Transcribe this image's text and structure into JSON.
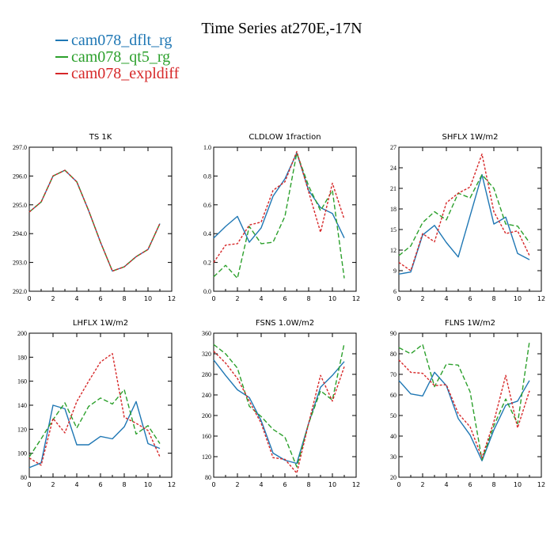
{
  "title": "Time Series at270E,-17N",
  "legend": [
    {
      "name": "cam078_dflt_rg",
      "color": "#1f77b4"
    },
    {
      "name": "cam078_qt5_rg",
      "color": "#2ca02c"
    },
    {
      "name": "cam078_expldiff",
      "color": "#d62728"
    }
  ],
  "chart_data": [
    {
      "type": "line",
      "title": "TS   1K",
      "x": [
        0,
        1,
        2,
        3,
        4,
        5,
        6,
        7,
        8,
        9,
        10,
        11
      ],
      "xlim": [
        0,
        12
      ],
      "xticks": [
        0,
        2,
        4,
        6,
        8,
        10,
        12
      ],
      "ylim": [
        292.0,
        297.0
      ],
      "yticks": [
        "292.0",
        "293.0",
        "294.0",
        "295.0",
        "296.0",
        "297.0"
      ],
      "series": [
        {
          "values": [
            294.75,
            295.1,
            296.0,
            296.2,
            295.8,
            294.8,
            293.7,
            292.7,
            292.85,
            293.2,
            293.45,
            294.35
          ]
        },
        {
          "values": [
            294.75,
            295.1,
            296.0,
            296.2,
            295.8,
            294.8,
            293.7,
            292.7,
            292.85,
            293.2,
            293.45,
            294.35
          ]
        },
        {
          "values": [
            294.75,
            295.1,
            296.0,
            296.2,
            295.8,
            294.8,
            293.7,
            292.7,
            292.85,
            293.2,
            293.45,
            294.35
          ]
        }
      ]
    },
    {
      "type": "line",
      "title": "CLDLOW   1fraction",
      "x": [
        0,
        1,
        2,
        3,
        4,
        5,
        6,
        7,
        8,
        9,
        10,
        11
      ],
      "xlim": [
        0,
        12
      ],
      "xticks": [
        0,
        2,
        4,
        6,
        8,
        10,
        12
      ],
      "ylim": [
        0.0,
        1.0
      ],
      "yticks": [
        "0.0",
        "0.2",
        "0.4",
        "0.6",
        "0.8",
        "1.0"
      ],
      "series": [
        {
          "values": [
            0.37,
            0.45,
            0.52,
            0.34,
            0.44,
            0.66,
            0.78,
            0.96,
            0.7,
            0.58,
            0.54,
            0.37
          ]
        },
        {
          "values": [
            0.1,
            0.18,
            0.09,
            0.45,
            0.33,
            0.34,
            0.52,
            0.96,
            0.73,
            0.56,
            0.7,
            0.09
          ]
        },
        {
          "values": [
            0.2,
            0.32,
            0.33,
            0.46,
            0.48,
            0.7,
            0.76,
            0.97,
            0.69,
            0.41,
            0.75,
            0.5
          ]
        }
      ]
    },
    {
      "type": "line",
      "title": "SHFLX   1W/m2",
      "x": [
        0,
        1,
        2,
        3,
        4,
        5,
        6,
        7,
        8,
        9,
        10,
        11
      ],
      "xlim": [
        0,
        12
      ],
      "xticks": [
        0,
        2,
        4,
        6,
        8,
        10,
        12
      ],
      "ylim": [
        6,
        27
      ],
      "yticks": [
        "6",
        "9",
        "12",
        "15",
        "18",
        "21",
        "24",
        "27"
      ],
      "series": [
        {
          "values": [
            8.5,
            8.8,
            14.2,
            15.6,
            13.1,
            11.0,
            17.0,
            23.0,
            15.8,
            16.8,
            11.5,
            10.6
          ]
        },
        {
          "values": [
            11.2,
            12.6,
            16.0,
            17.6,
            16.4,
            20.3,
            19.6,
            23.0,
            21.0,
            15.8,
            15.5,
            13.1
          ]
        },
        {
          "values": [
            10.2,
            9.0,
            14.4,
            13.2,
            18.9,
            20.3,
            21.2,
            26.0,
            17.6,
            14.4,
            14.8,
            11.2
          ]
        }
      ]
    },
    {
      "type": "line",
      "title": "LHFLX   1W/m2",
      "x": [
        0,
        1,
        2,
        3,
        4,
        5,
        6,
        7,
        8,
        9,
        10,
        11
      ],
      "xlim": [
        0,
        12
      ],
      "xticks": [
        0,
        2,
        4,
        6,
        8,
        10,
        12
      ],
      "ylim": [
        80,
        200
      ],
      "yticks": [
        "80",
        "100",
        "120",
        "140",
        "160",
        "180",
        "200"
      ],
      "series": [
        {
          "values": [
            88,
            92,
            140,
            137,
            107,
            107,
            114,
            112,
            122,
            143,
            108,
            104
          ]
        },
        {
          "values": [
            97,
            112,
            128,
            142,
            121,
            139,
            146,
            141,
            153,
            116,
            123,
            108
          ]
        },
        {
          "values": [
            96,
            90,
            129,
            117,
            143,
            160,
            176,
            183,
            130,
            125,
            119,
            97
          ]
        }
      ]
    },
    {
      "type": "line",
      "title": "FSNS   1.0W/m2",
      "x": [
        0,
        1,
        2,
        3,
        4,
        5,
        6,
        7,
        8,
        9,
        10,
        11
      ],
      "xlim": [
        0,
        12
      ],
      "xticks": [
        0,
        2,
        4,
        6,
        8,
        10,
        12
      ],
      "ylim": [
        80,
        360
      ],
      "yticks": [
        "80",
        "120",
        "160",
        "200",
        "240",
        "280",
        "320",
        "360"
      ],
      "series": [
        {
          "values": [
            308,
            278,
            250,
            235,
            190,
            127,
            113,
            107,
            185,
            255,
            278,
            305
          ]
        },
        {
          "values": [
            338,
            320,
            292,
            218,
            198,
            173,
            158,
            100,
            185,
            248,
            230,
            340
          ]
        },
        {
          "values": [
            325,
            302,
            272,
            228,
            185,
            118,
            115,
            88,
            185,
            278,
            228,
            295
          ]
        }
      ]
    },
    {
      "type": "line",
      "title": "FLNS   1W/m2",
      "x": [
        0,
        1,
        2,
        3,
        4,
        5,
        6,
        7,
        8,
        9,
        10,
        11
      ],
      "xlim": [
        0,
        12
      ],
      "xticks": [
        0,
        2,
        4,
        6,
        8,
        10,
        12
      ],
      "ylim": [
        20,
        90
      ],
      "yticks": [
        "20",
        "30",
        "40",
        "50",
        "60",
        "70",
        "80",
        "90"
      ],
      "series": [
        {
          "values": [
            67,
            60.5,
            59.5,
            71,
            64.5,
            48.5,
            40.5,
            28,
            43,
            55,
            57,
            67
          ]
        },
        {
          "values": [
            83,
            80,
            84.5,
            64,
            75,
            74.5,
            61.5,
            28.5,
            45,
            58,
            46,
            86
          ]
        },
        {
          "values": [
            77,
            71,
            70.5,
            64.5,
            65,
            51,
            44.5,
            29.5,
            47,
            69.5,
            44,
            62
          ]
        }
      ]
    }
  ]
}
